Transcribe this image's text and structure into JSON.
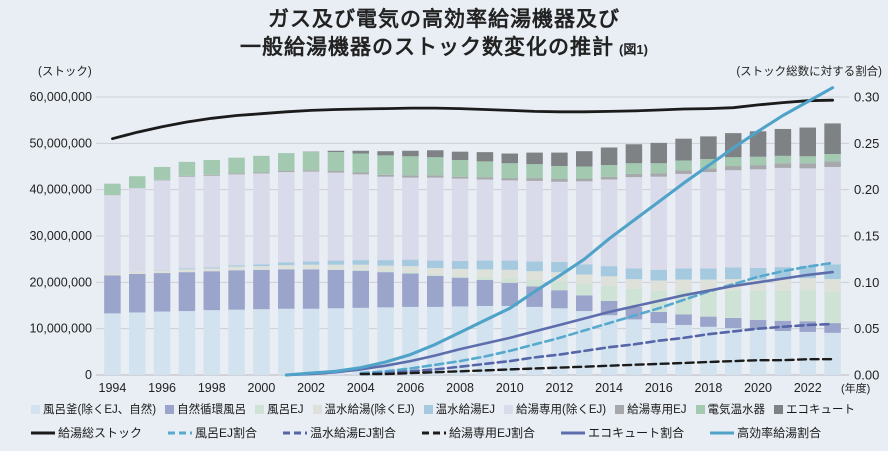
{
  "title": {
    "line1": "ガス及び電気の高効率給湯機器及び",
    "line2": "一般給湯機器のストック数変化の推計",
    "fig_label": "(図1)"
  },
  "axes": {
    "left_unit_label": "(ストック)",
    "right_unit_label": "(ストック総数に対する割合)",
    "left_ticks": [
      "0",
      "10,000,000",
      "20,000,000",
      "30,000,000",
      "40,000,000",
      "50,000,000",
      "60,000,000"
    ],
    "right_ticks": [
      "0.00",
      "0.05",
      "0.10",
      "0.15",
      "0.20",
      "0.25",
      "0.30"
    ],
    "x_tick_years": [
      1994,
      1996,
      1998,
      2000,
      2002,
      2004,
      2006,
      2008,
      2010,
      2012,
      2014,
      2016,
      2018,
      2020,
      2022
    ],
    "x_axis_suffix": "(年度)"
  },
  "colors": {
    "background": "#e8eef4",
    "gridline": "#cdd1d6",
    "zeroline": "#b7bbc0",
    "text": "#222222"
  },
  "chart_data": {
    "type": "bar",
    "subtype": "stacked-bar with line overlay",
    "years": [
      1994,
      1995,
      1996,
      1997,
      1998,
      1999,
      2000,
      2001,
      2002,
      2003,
      2004,
      2005,
      2006,
      2007,
      2008,
      2009,
      2010,
      2011,
      2012,
      2013,
      2014,
      2015,
      2016,
      2017,
      2018,
      2019,
      2020,
      2021,
      2022,
      2023
    ],
    "y_left": {
      "label": "ストック",
      "range": [
        0,
        60000000
      ],
      "unit": "stocks"
    },
    "y_right": {
      "label": "ストック総数に対する割合",
      "range": [
        0,
        0.3
      ],
      "unit": "ratio"
    },
    "bar_values_unit": "millions of stocks (left axis)",
    "bar_series": [
      {
        "name": "風呂釜(除くEJ、自然)",
        "color": "#d2e2ef",
        "values": [
          13.3,
          13.5,
          13.7,
          13.8,
          14.0,
          14.1,
          14.2,
          14.3,
          14.3,
          14.4,
          14.5,
          14.6,
          14.7,
          14.7,
          14.8,
          14.9,
          14.9,
          14.7,
          14.4,
          13.8,
          12.9,
          12.0,
          11.2,
          10.8,
          10.4,
          10.1,
          9.8,
          9.5,
          9.3,
          9.1
        ]
      },
      {
        "name": "自然循環風呂",
        "color": "#9ba4cb",
        "values": [
          8.2,
          8.3,
          8.3,
          8.4,
          8.4,
          8.5,
          8.5,
          8.5,
          8.5,
          8.3,
          8.0,
          7.6,
          7.2,
          6.7,
          6.2,
          5.6,
          5.0,
          4.4,
          3.9,
          3.4,
          3.1,
          2.7,
          2.4,
          2.3,
          2.2,
          2.2,
          2.1,
          2.2,
          2.3,
          2.1
        ]
      },
      {
        "name": "風呂EJ",
        "color": "#cfe2d6",
        "values": [
          0,
          0,
          0,
          0,
          0,
          0.1,
          0.1,
          0.1,
          0.1,
          0.1,
          0.2,
          0.2,
          0.3,
          0.3,
          0.3,
          0.6,
          1.0,
          1.4,
          1.9,
          2.5,
          3.2,
          3.9,
          4.6,
          5.2,
          5.7,
          6.0,
          6.3,
          6.5,
          6.8,
          6.9
        ]
      },
      {
        "name": "温水給湯(除くEJ)",
        "color": "#dee0da",
        "values": [
          0.4,
          0.5,
          0.5,
          0.6,
          0.6,
          0.7,
          0.7,
          0.8,
          0.9,
          1.0,
          1.1,
          1.2,
          1.3,
          1.4,
          1.6,
          1.7,
          1.8,
          1.9,
          2.0,
          2.0,
          2.1,
          2.1,
          2.2,
          2.3,
          2.3,
          2.4,
          2.4,
          2.5,
          2.5,
          2.6
        ]
      },
      {
        "name": "温水給湯EJ",
        "color": "#a5cadf",
        "values": [
          0,
          0,
          0.1,
          0.2,
          0.2,
          0.3,
          0.4,
          0.6,
          0.7,
          0.9,
          1.0,
          1.2,
          1.4,
          1.6,
          1.7,
          1.9,
          2.0,
          2.1,
          2.2,
          2.2,
          2.2,
          2.3,
          2.3,
          2.4,
          2.4,
          2.5,
          2.5,
          2.6,
          2.7,
          3.2
        ]
      },
      {
        "name": "給湯専用(除くEJ)",
        "color": "#d9dbea",
        "values": [
          16.9,
          18.0,
          19.4,
          19.8,
          19.8,
          19.6,
          19.6,
          19.5,
          19.4,
          19.0,
          18.5,
          18.0,
          17.7,
          17.9,
          17.8,
          17.5,
          17.3,
          17.4,
          17.3,
          17.9,
          18.7,
          19.7,
          20.1,
          20.4,
          20.8,
          21.0,
          21.3,
          21.4,
          21.0,
          21.0
        ]
      },
      {
        "name": "給湯専用EJ",
        "color": "#a6a8ab",
        "values": [
          0,
          0,
          0.1,
          0.2,
          0.2,
          0.2,
          0.2,
          0.3,
          0.3,
          0.4,
          0.4,
          0.4,
          0.5,
          0.5,
          0.4,
          0.5,
          0.5,
          0.6,
          0.6,
          0.6,
          0.6,
          0.7,
          0.7,
          0.8,
          0.8,
          0.9,
          0.9,
          1.0,
          1.1,
          1.2
        ]
      },
      {
        "name": "電気温水器",
        "color": "#a3cab1",
        "values": [
          2.5,
          2.6,
          2.8,
          3.0,
          3.2,
          3.4,
          3.6,
          3.8,
          3.9,
          4.0,
          4.1,
          4.2,
          4.1,
          3.9,
          3.6,
          3.4,
          3.2,
          3.0,
          2.8,
          2.6,
          2.5,
          2.3,
          2.2,
          2.1,
          2.0,
          1.9,
          1.8,
          1.6,
          1.5,
          1.6
        ]
      },
      {
        "name": "エコキュート",
        "color": "#7f8285",
        "values": [
          0,
          0,
          0,
          0,
          0,
          0,
          0,
          0,
          0.1,
          0.3,
          0.6,
          0.9,
          1.2,
          1.5,
          1.8,
          2.0,
          2.1,
          2.5,
          2.9,
          3.3,
          3.8,
          4.1,
          4.4,
          4.7,
          4.9,
          5.2,
          5.5,
          5.8,
          6.2,
          6.6
        ]
      }
    ],
    "line_series": [
      {
        "name": "給湯総ストック",
        "color": "#1b1b1b",
        "dash": false,
        "axis": "left",
        "width": 2.8,
        "values": [
          51.0,
          52.4,
          53.6,
          54.6,
          55.4,
          56.0,
          56.4,
          56.8,
          57.1,
          57.3,
          57.4,
          57.5,
          57.6,
          57.6,
          57.5,
          57.3,
          57.1,
          56.9,
          56.8,
          56.8,
          56.9,
          57.0,
          57.2,
          57.4,
          57.5,
          57.7,
          58.3,
          58.8,
          59.2,
          59.3
        ]
      },
      {
        "name": "風呂EJ割合",
        "color": "#57a9cd",
        "dash": true,
        "axis": "right",
        "width": 2.6,
        "values": [
          null,
          null,
          null,
          null,
          null,
          null,
          null,
          null,
          null,
          null,
          0.002,
          0.004,
          0.007,
          0.011,
          0.015,
          0.02,
          0.026,
          0.033,
          0.04,
          0.048,
          0.056,
          0.064,
          0.072,
          0.081,
          0.09,
          0.098,
          0.106,
          0.112,
          0.117,
          0.121
        ]
      },
      {
        "name": "温水給湯EJ割合",
        "color": "#5565a8",
        "dash": true,
        "axis": "right",
        "width": 2.6,
        "values": [
          null,
          null,
          null,
          null,
          null,
          null,
          null,
          null,
          null,
          null,
          0.001,
          0.002,
          0.004,
          0.006,
          0.009,
          0.012,
          0.015,
          0.019,
          0.022,
          0.026,
          0.03,
          0.033,
          0.037,
          0.04,
          0.044,
          0.047,
          0.05,
          0.052,
          0.054,
          0.055
        ]
      },
      {
        "name": "給湯専用EJ割合",
        "color": "#1b1b1b",
        "dash": true,
        "axis": "right",
        "width": 2.4,
        "values": [
          null,
          null,
          null,
          null,
          null,
          null,
          null,
          null,
          null,
          null,
          0.001,
          0.001,
          0.002,
          0.003,
          0.004,
          0.005,
          0.006,
          0.007,
          0.008,
          0.009,
          0.01,
          0.011,
          0.012,
          0.013,
          0.014,
          0.015,
          0.016,
          0.016,
          0.017,
          0.017
        ]
      },
      {
        "name": "エコキュート割合",
        "color": "#5e6ead",
        "dash": false,
        "axis": "right",
        "width": 2.6,
        "values": [
          null,
          null,
          null,
          null,
          null,
          null,
          null,
          0.0,
          0.001,
          0.003,
          0.006,
          0.01,
          0.015,
          0.021,
          0.028,
          0.034,
          0.04,
          0.047,
          0.054,
          0.061,
          0.068,
          0.074,
          0.08,
          0.086,
          0.091,
          0.096,
          0.1,
          0.104,
          0.108,
          0.111
        ]
      },
      {
        "name": "高効率給湯割合",
        "color": "#4fa3c8",
        "dash": false,
        "axis": "right",
        "width": 3.1,
        "values": [
          null,
          null,
          null,
          null,
          null,
          null,
          null,
          0.0,
          0.002,
          0.004,
          0.008,
          0.014,
          0.022,
          0.033,
          0.046,
          0.059,
          0.072,
          0.09,
          0.107,
          0.125,
          0.147,
          0.167,
          0.187,
          0.207,
          0.226,
          0.245,
          0.263,
          0.28,
          0.295,
          0.31
        ]
      }
    ]
  }
}
